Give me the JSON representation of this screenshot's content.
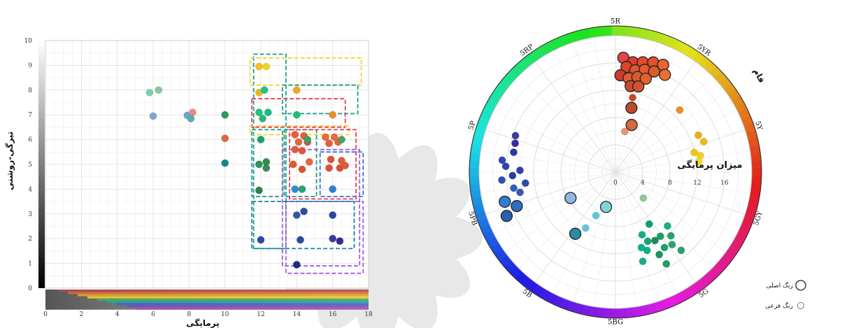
{
  "chart_data": [
    {
      "type": "scatter",
      "xlabel": "پرمایگی",
      "ylabel": "تیرگی-روشنی",
      "xlim": [
        0,
        18
      ],
      "ylim": [
        0,
        10
      ],
      "x_ticks": [
        "0",
        "2",
        "4",
        "6",
        "8",
        "10",
        "12",
        "14",
        "16",
        "18"
      ],
      "y_ticks": [
        "0",
        "1",
        "2",
        "3",
        "4",
        "5",
        "6",
        "7",
        "8",
        "9",
        "10"
      ],
      "grid": true,
      "points": [
        {
          "x": 5.8,
          "y": 7.9,
          "color": "#7ccdb4"
        },
        {
          "x": 6.3,
          "y": 8.0,
          "color": "#88c898"
        },
        {
          "x": 6.0,
          "y": 6.95,
          "color": "#7ea8d4"
        },
        {
          "x": 7.9,
          "y": 6.98,
          "color": "#6fa5c9"
        },
        {
          "x": 8.2,
          "y": 7.1,
          "color": "#e98b7f"
        },
        {
          "x": 8.1,
          "y": 6.85,
          "color": "#5eaab0"
        },
        {
          "x": 10.0,
          "y": 7.0,
          "color": "#2a9a5c"
        },
        {
          "x": 10.0,
          "y": 6.05,
          "color": "#d96a3d"
        },
        {
          "x": 10.0,
          "y": 5.05,
          "color": "#13868a"
        },
        {
          "x": 11.9,
          "y": 8.95,
          "color": "#f3c41d"
        },
        {
          "x": 12.3,
          "y": 8.95,
          "color": "#f1d12a"
        },
        {
          "x": 11.9,
          "y": 7.9,
          "color": "#e7b81d"
        },
        {
          "x": 12.2,
          "y": 8.0,
          "color": "#20c488"
        },
        {
          "x": 14.0,
          "y": 8.0,
          "color": "#e9a82a"
        },
        {
          "x": 11.9,
          "y": 7.1,
          "color": "#25c17d"
        },
        {
          "x": 12.4,
          "y": 7.1,
          "color": "#19b989"
        },
        {
          "x": 12.1,
          "y": 6.85,
          "color": "#2fb37c"
        },
        {
          "x": 14.0,
          "y": 7.0,
          "color": "#22bd78"
        },
        {
          "x": 16.0,
          "y": 7.0,
          "color": "#e98e29"
        },
        {
          "x": 12.0,
          "y": 6.0,
          "color": "#1ea065"
        },
        {
          "x": 11.9,
          "y": 5.0,
          "color": "#2e9458"
        },
        {
          "x": 12.3,
          "y": 5.1,
          "color": "#2f8d4c"
        },
        {
          "x": 12.3,
          "y": 4.85,
          "color": "#3b8a52"
        },
        {
          "x": 11.9,
          "y": 3.95,
          "color": "#2f7d52"
        },
        {
          "x": 12.0,
          "y": 1.95,
          "color": "#2c4aa0"
        },
        {
          "x": 13.9,
          "y": 6.2,
          "color": "#e85a3a"
        },
        {
          "x": 14.4,
          "y": 6.15,
          "color": "#e05d3b"
        },
        {
          "x": 14.1,
          "y": 5.9,
          "color": "#e0663d"
        },
        {
          "x": 14.6,
          "y": 5.9,
          "color": "#d75038"
        },
        {
          "x": 13.9,
          "y": 5.6,
          "color": "#e05b3a"
        },
        {
          "x": 14.3,
          "y": 5.55,
          "color": "#e0553a"
        },
        {
          "x": 14.6,
          "y": 6.0,
          "color": "#3b9e65"
        },
        {
          "x": 13.8,
          "y": 5.0,
          "color": "#dd5a35"
        },
        {
          "x": 14.3,
          "y": 4.8,
          "color": "#d65533"
        },
        {
          "x": 14.7,
          "y": 5.1,
          "color": "#e26a3c"
        },
        {
          "x": 13.9,
          "y": 4.0,
          "color": "#2f8bd5"
        },
        {
          "x": 14.3,
          "y": 4.0,
          "color": "#2d9f70"
        },
        {
          "x": 14.0,
          "y": 2.95,
          "color": "#3456a8"
        },
        {
          "x": 14.4,
          "y": 3.1,
          "color": "#2a4fa3"
        },
        {
          "x": 14.2,
          "y": 1.95,
          "color": "#2849a2"
        },
        {
          "x": 14.0,
          "y": 0.95,
          "color": "#1e2a80"
        },
        {
          "x": 15.6,
          "y": 6.1,
          "color": "#e9673c"
        },
        {
          "x": 16.1,
          "y": 6.1,
          "color": "#e86a3c"
        },
        {
          "x": 15.8,
          "y": 5.85,
          "color": "#e35d3a"
        },
        {
          "x": 16.3,
          "y": 5.9,
          "color": "#e4643c"
        },
        {
          "x": 16.5,
          "y": 6.0,
          "color": "#3fa66b"
        },
        {
          "x": 15.9,
          "y": 5.2,
          "color": "#dc5537"
        },
        {
          "x": 16.5,
          "y": 5.15,
          "color": "#e05a38"
        },
        {
          "x": 15.8,
          "y": 4.85,
          "color": "#d95236"
        },
        {
          "x": 16.4,
          "y": 4.85,
          "color": "#d65034"
        },
        {
          "x": 16.7,
          "y": 4.95,
          "color": "#de5e38"
        },
        {
          "x": 16.0,
          "y": 4.0,
          "color": "#2e7fd4"
        },
        {
          "x": 16.0,
          "y": 2.95,
          "color": "#2c46a2"
        },
        {
          "x": 16.0,
          "y": 2.0,
          "color": "#3a3aa0"
        },
        {
          "x": 16.4,
          "y": 1.9,
          "color": "#2f2c8f"
        }
      ],
      "boxes": [
        {
          "x0": 11.6,
          "x1": 13.4,
          "y0": 1.6,
          "y1": 9.45,
          "color": "#17a08a"
        },
        {
          "x0": 11.4,
          "x1": 17.6,
          "y0": 8.2,
          "y1": 9.3,
          "color": "#f2d22a"
        },
        {
          "x0": 13.2,
          "x1": 17.4,
          "y0": 7.05,
          "y1": 8.2,
          "color": "#17a08a"
        },
        {
          "x0": 11.5,
          "x1": 16.7,
          "y0": 6.5,
          "y1": 7.65,
          "color": "#e83a55"
        },
        {
          "x0": 11.4,
          "x1": 16.9,
          "y0": 6.2,
          "y1": 6.55,
          "color": "#f2d22a"
        },
        {
          "x0": 11.5,
          "x1": 13.2,
          "y0": 3.7,
          "y1": 6.4,
          "color": "#17a08a"
        },
        {
          "x0": 13.3,
          "x1": 15.1,
          "y0": 3.7,
          "y1": 6.4,
          "color": "#17a08a"
        },
        {
          "x0": 13.6,
          "x1": 17.3,
          "y0": 3.6,
          "y1": 6.4,
          "color": "#e83a55"
        },
        {
          "x0": 15.3,
          "x1": 17.7,
          "y0": 3.7,
          "y1": 5.5,
          "color": "#3572c4"
        },
        {
          "x0": 13.2,
          "x1": 17.5,
          "y0": 0.9,
          "y1": 5.6,
          "color": "#a35ce0"
        },
        {
          "x0": 13.4,
          "x1": 17.7,
          "y0": 0.6,
          "y1": 3.5,
          "color": "#a35ce0"
        },
        {
          "x0": 11.5,
          "x1": 17.2,
          "y0": 1.6,
          "y1": 3.5,
          "color": "#1782a8"
        }
      ]
    },
    {
      "type": "polar-scatter",
      "hue_title": "فام",
      "radial_title": "میزان پرمایگی",
      "radial_ticks": [
        "0",
        "4",
        "8",
        "12",
        "16"
      ],
      "rmax": 20,
      "hue_labels": [
        "5R",
        "5YR",
        "5Y",
        "5GY",
        "5G",
        "5BG",
        "5B",
        "5PB",
        "5P",
        "5RP"
      ],
      "points": [
        {
          "deg": 4,
          "r": 16.8,
          "size": "main",
          "color": "#e44545"
        },
        {
          "deg": 9,
          "r": 16.3,
          "size": "main",
          "color": "#df3c2c"
        },
        {
          "deg": 14,
          "r": 16.6,
          "size": "main",
          "color": "#e14b2c"
        },
        {
          "deg": 19,
          "r": 17.0,
          "size": "main",
          "color": "#e1512a"
        },
        {
          "deg": 24,
          "r": 17.2,
          "size": "main",
          "color": "#e8652e"
        },
        {
          "deg": 6,
          "r": 15.5,
          "size": "main",
          "color": "#d94628"
        },
        {
          "deg": 11,
          "r": 15.2,
          "size": "main",
          "color": "#e1542f"
        },
        {
          "deg": 16,
          "r": 15.6,
          "size": "main",
          "color": "#e65b2d"
        },
        {
          "deg": 21,
          "r": 15.8,
          "size": "main",
          "color": "#dc5a28"
        },
        {
          "deg": 27,
          "r": 16.0,
          "size": "main",
          "color": "#e9712f"
        },
        {
          "deg": 3,
          "r": 14.2,
          "size": "main",
          "color": "#d23a2c"
        },
        {
          "deg": 8,
          "r": 13.9,
          "size": "main",
          "color": "#e45a30"
        },
        {
          "deg": 13,
          "r": 14.3,
          "size": "main",
          "color": "#d65930"
        },
        {
          "deg": 18,
          "r": 14.4,
          "size": "main",
          "color": "#e3612f"
        },
        {
          "deg": 10,
          "r": 12.8,
          "size": "main",
          "color": "#c84a28"
        },
        {
          "deg": 15,
          "r": 13.0,
          "size": "main",
          "color": "#d05330"
        },
        {
          "deg": 13,
          "r": 11.2,
          "size": "sub",
          "color": "#c9472c"
        },
        {
          "deg": 14,
          "r": 9.7,
          "size": "main",
          "color": "#bd4a2c"
        },
        {
          "deg": 19,
          "r": 7.3,
          "size": "main",
          "color": "#d56a3b"
        },
        {
          "deg": 13,
          "r": 6.1,
          "size": "sub",
          "color": "#e8927c"
        },
        {
          "deg": 46,
          "r": 13.1,
          "size": "sub",
          "color": "#ea8f26"
        },
        {
          "deg": 66,
          "r": 13.3,
          "size": "sub",
          "color": "#e7ad1a"
        },
        {
          "deg": 71,
          "r": 13.7,
          "size": "sub",
          "color": "#ebba18"
        },
        {
          "deg": 76,
          "r": 11.9,
          "size": "sub",
          "color": "#edc51e"
        },
        {
          "deg": 79,
          "r": 12.7,
          "size": "sub",
          "color": "#f0d11e"
        },
        {
          "deg": 83,
          "r": 12.3,
          "size": "sub",
          "color": "#f2d81c"
        },
        {
          "deg": 133,
          "r": 5.6,
          "size": "sub",
          "color": "#8fc89a"
        },
        {
          "deg": 136,
          "r": 11.0,
          "size": "sub",
          "color": "#21ad77"
        },
        {
          "deg": 139,
          "r": 12.4,
          "size": "sub",
          "color": "#1ea968"
        },
        {
          "deg": 142,
          "r": 13.5,
          "size": "sub",
          "color": "#2ba46a"
        },
        {
          "deg": 145,
          "r": 11.5,
          "size": "sub",
          "color": "#1e9e6b"
        },
        {
          "deg": 147,
          "r": 13.2,
          "size": "sub",
          "color": "#19a26a"
        },
        {
          "deg": 150,
          "r": 11.6,
          "size": "sub",
          "color": "#1f8d55"
        },
        {
          "deg": 152,
          "r": 13.7,
          "size": "sub",
          "color": "#19955e"
        },
        {
          "deg": 155,
          "r": 11.2,
          "size": "sub",
          "color": "#18a378"
        },
        {
          "deg": 158,
          "r": 12.4,
          "size": "sub",
          "color": "#11b089"
        },
        {
          "deg": 161,
          "r": 11.7,
          "size": "sub",
          "color": "#0fb192"
        },
        {
          "deg": 163,
          "r": 13.7,
          "size": "sub",
          "color": "#15ac8d"
        },
        {
          "deg": 151,
          "r": 15.4,
          "size": "sub",
          "color": "#1f9c5c"
        },
        {
          "deg": 140,
          "r": 15.0,
          "size": "sub",
          "color": "#2aa06b"
        },
        {
          "deg": 147,
          "r": 9.1,
          "size": "sub",
          "color": "#0c9f74"
        },
        {
          "deg": 157,
          "r": 10.0,
          "size": "sub",
          "color": "#12ad84"
        },
        {
          "deg": 195,
          "r": 5.3,
          "size": "main",
          "color": "#7fd6dc"
        },
        {
          "deg": 204,
          "r": 7.0,
          "size": "sub",
          "color": "#5ccad6"
        },
        {
          "deg": 208,
          "r": 9.3,
          "size": "sub",
          "color": "#66c2d9"
        },
        {
          "deg": 213,
          "r": 10.8,
          "size": "main",
          "color": "#2d8aa9"
        },
        {
          "deg": 240,
          "r": 7.6,
          "size": "main",
          "color": "#8fb9e0"
        },
        {
          "deg": 248,
          "r": 17.2,
          "size": "main",
          "color": "#2a5fae"
        },
        {
          "deg": 251,
          "r": 15.3,
          "size": "main",
          "color": "#2e6ec0"
        },
        {
          "deg": 255,
          "r": 16.8,
          "size": "main",
          "color": "#2f7fd2"
        },
        {
          "deg": 258,
          "r": 14.3,
          "size": "sub",
          "color": "#3d55b0"
        },
        {
          "deg": 261,
          "r": 15.1,
          "size": "sub",
          "color": "#2e63b9"
        },
        {
          "deg": 263,
          "r": 13.3,
          "size": "sub",
          "color": "#2f4aa8"
        },
        {
          "deg": 266,
          "r": 16.7,
          "size": "sub",
          "color": "#2f4eae"
        },
        {
          "deg": 268,
          "r": 15.1,
          "size": "sub",
          "color": "#2a3f9c"
        },
        {
          "deg": 271,
          "r": 14.0,
          "size": "sub",
          "color": "#2f41a4"
        },
        {
          "deg": 273,
          "r": 16.1,
          "size": "sub",
          "color": "#2d45a9"
        },
        {
          "deg": 276,
          "r": 16.7,
          "size": "sub",
          "color": "#3245b2"
        },
        {
          "deg": 281,
          "r": 15.2,
          "size": "sub",
          "color": "#2d3a9d"
        },
        {
          "deg": 286,
          "r": 15.3,
          "size": "sub",
          "color": "#312f9f"
        },
        {
          "deg": 290,
          "r": 15.6,
          "size": "sub",
          "color": "#4337a6"
        }
      ],
      "legend": [
        {
          "label": "رنگ اصلی",
          "size": "main"
        },
        {
          "label": "رنگ فرعی",
          "size": "sub"
        }
      ]
    }
  ]
}
